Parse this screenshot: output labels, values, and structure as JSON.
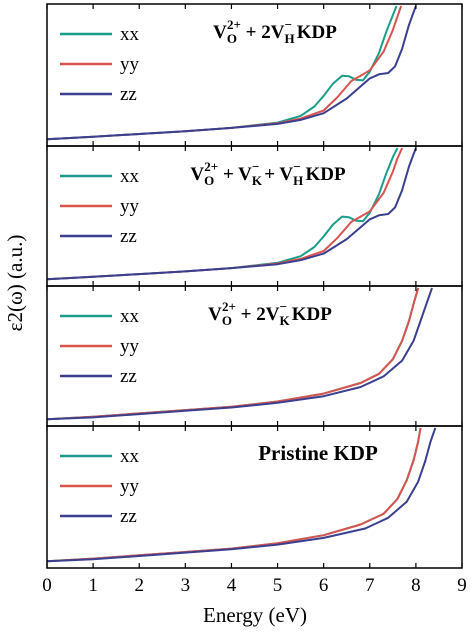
{
  "chart_data": {
    "type": "line",
    "xlabel": "Energy (eV)",
    "ylabel": "ε2(ω) (a.u.)",
    "xlim": [
      0,
      9
    ],
    "x_ticks": [
      "0",
      "1",
      "2",
      "3",
      "4",
      "5",
      "6",
      "7",
      "8",
      "9"
    ],
    "grid": false,
    "legend_placement": "top-left",
    "series_colors": {
      "xx": "#1a9e8a",
      "yy": "#d9534f",
      "zz": "#3a3f8f"
    },
    "panels": [
      {
        "title": {
          "pre": "V",
          "sub1": "O",
          "sup1": "2+",
          "mid": " + 2V",
          "sub2": "H",
          "sup2": "−",
          "post": " KDP"
        },
        "legend": [
          "xx",
          "yy",
          "zz"
        ],
        "ylim": [
          0,
          10
        ],
        "series": [
          {
            "name": "xx",
            "x": [
              0,
              1,
              2,
              3,
              4,
              5,
              5.5,
              5.8,
              6.0,
              6.2,
              6.4,
              6.55,
              6.7,
              6.85,
              7.0,
              7.2,
              7.35,
              7.5,
              7.58
            ],
            "y": [
              0.05,
              0.25,
              0.45,
              0.65,
              0.9,
              1.3,
              1.8,
              2.5,
              3.3,
              4.2,
              4.8,
              4.75,
              4.5,
              4.45,
              5.1,
              6.5,
              8.0,
              9.3,
              10
            ]
          },
          {
            "name": "yy",
            "x": [
              0,
              1,
              2,
              3,
              4,
              5,
              5.5,
              6.0,
              6.3,
              6.6,
              6.8,
              7.0,
              7.3,
              7.5,
              7.6,
              7.68
            ],
            "y": [
              0.05,
              0.25,
              0.45,
              0.65,
              0.9,
              1.25,
              1.6,
              2.2,
              3.2,
              4.4,
              4.8,
              5.2,
              6.6,
              8.2,
              9.2,
              10
            ]
          },
          {
            "name": "zz",
            "x": [
              0,
              1,
              2,
              3,
              4,
              5,
              5.5,
              6.0,
              6.5,
              6.8,
              7.0,
              7.2,
              7.4,
              7.55,
              7.7,
              7.85,
              8.0
            ],
            "y": [
              0.05,
              0.25,
              0.45,
              0.65,
              0.9,
              1.2,
              1.5,
              2.0,
              3.1,
              4.0,
              4.6,
              4.9,
              5.0,
              5.5,
              6.8,
              8.6,
              10
            ]
          }
        ]
      },
      {
        "title": {
          "pre": "V",
          "sub1": "O",
          "sup1": "2+",
          "mid": " + V",
          "sub2": "K",
          "sup2": "−",
          "mid2": " + V",
          "sub3": "H",
          "sup3": "−",
          "post": " KDP"
        },
        "legend": [
          "xx",
          "yy",
          "zz"
        ],
        "ylim": [
          0,
          10
        ],
        "series": [
          {
            "name": "xx",
            "x": [
              0,
              1,
              2,
              3,
              4,
              5,
              5.5,
              5.8,
              6.0,
              6.2,
              6.4,
              6.55,
              6.7,
              6.85,
              7.0,
              7.2,
              7.35,
              7.5,
              7.6
            ],
            "y": [
              0.05,
              0.25,
              0.45,
              0.65,
              0.9,
              1.3,
              1.8,
              2.5,
              3.3,
              4.2,
              4.8,
              4.75,
              4.5,
              4.45,
              5.1,
              6.5,
              8.0,
              9.3,
              10
            ]
          },
          {
            "name": "yy",
            "x": [
              0,
              1,
              2,
              3,
              4,
              5,
              5.5,
              6.0,
              6.3,
              6.6,
              6.8,
              7.0,
              7.3,
              7.5,
              7.6,
              7.7
            ],
            "y": [
              0.05,
              0.25,
              0.45,
              0.65,
              0.9,
              1.25,
              1.6,
              2.2,
              3.2,
              4.4,
              4.8,
              5.2,
              6.6,
              8.2,
              9.2,
              10
            ]
          },
          {
            "name": "zz",
            "x": [
              0,
              1,
              2,
              3,
              4,
              5,
              5.5,
              6.0,
              6.5,
              6.8,
              7.0,
              7.2,
              7.4,
              7.55,
              7.7,
              7.85,
              8.0
            ],
            "y": [
              0.05,
              0.25,
              0.45,
              0.65,
              0.9,
              1.2,
              1.5,
              2.0,
              3.1,
              4.0,
              4.6,
              4.9,
              5.0,
              5.5,
              6.8,
              8.6,
              10
            ]
          }
        ]
      },
      {
        "title": {
          "pre": "V",
          "sub1": "O",
          "sup1": "2+",
          "mid": " + 2V",
          "sub2": "K",
          "sup2": "−",
          "post": " KDP"
        },
        "legend": [
          "xx",
          "yy",
          "zz"
        ],
        "ylim": [
          0,
          10
        ],
        "series": [
          {
            "name": "xx",
            "x": [
              0,
              1,
              2,
              3,
              4,
              5,
              6,
              6.8,
              7.2,
              7.5,
              7.7,
              7.85,
              7.95,
              8.05
            ],
            "y": [
              0.05,
              0.25,
              0.5,
              0.75,
              1.0,
              1.4,
              2.0,
              2.8,
              3.5,
              4.6,
              6.0,
              7.5,
              8.8,
              10
            ]
          },
          {
            "name": "yy",
            "x": [
              0,
              1,
              2,
              3,
              4,
              5,
              6,
              6.8,
              7.2,
              7.5,
              7.7,
              7.85,
              7.95,
              8.05
            ],
            "y": [
              0.05,
              0.25,
              0.5,
              0.75,
              1.0,
              1.4,
              2.0,
              2.8,
              3.5,
              4.6,
              6.0,
              7.5,
              8.8,
              10
            ]
          },
          {
            "name": "zz",
            "x": [
              0,
              1,
              2,
              3,
              4,
              5,
              6,
              6.8,
              7.3,
              7.7,
              7.95,
              8.1,
              8.25,
              8.35
            ],
            "y": [
              0.05,
              0.2,
              0.45,
              0.7,
              0.95,
              1.3,
              1.8,
              2.5,
              3.3,
              4.5,
              6.0,
              7.5,
              9.0,
              10
            ]
          }
        ]
      },
      {
        "title": {
          "pre": "Pristine KDP"
        },
        "legend": [
          "xx",
          "yy",
          "zz"
        ],
        "ylim": [
          0,
          10
        ],
        "series": [
          {
            "name": "xx",
            "x": [
              0,
              1,
              2,
              3,
              4,
              5,
              6,
              6.8,
              7.3,
              7.6,
              7.8,
              7.95,
              8.05,
              8.1
            ],
            "y": [
              0.05,
              0.25,
              0.5,
              0.75,
              1.0,
              1.4,
              2.0,
              2.8,
              3.6,
              4.7,
              6.1,
              7.6,
              9.0,
              10
            ]
          },
          {
            "name": "yy",
            "x": [
              0,
              1,
              2,
              3,
              4,
              5,
              6,
              6.8,
              7.3,
              7.6,
              7.8,
              7.95,
              8.05,
              8.1
            ],
            "y": [
              0.05,
              0.25,
              0.5,
              0.75,
              1.0,
              1.4,
              2.0,
              2.8,
              3.6,
              4.7,
              6.1,
              7.6,
              9.0,
              10
            ]
          },
          {
            "name": "zz",
            "x": [
              0,
              1,
              2,
              3,
              4,
              5,
              6,
              6.9,
              7.4,
              7.8,
              8.05,
              8.2,
              8.32,
              8.42
            ],
            "y": [
              0.05,
              0.2,
              0.45,
              0.7,
              0.95,
              1.3,
              1.8,
              2.5,
              3.3,
              4.5,
              6.0,
              7.5,
              9.0,
              10
            ]
          }
        ]
      }
    ]
  }
}
